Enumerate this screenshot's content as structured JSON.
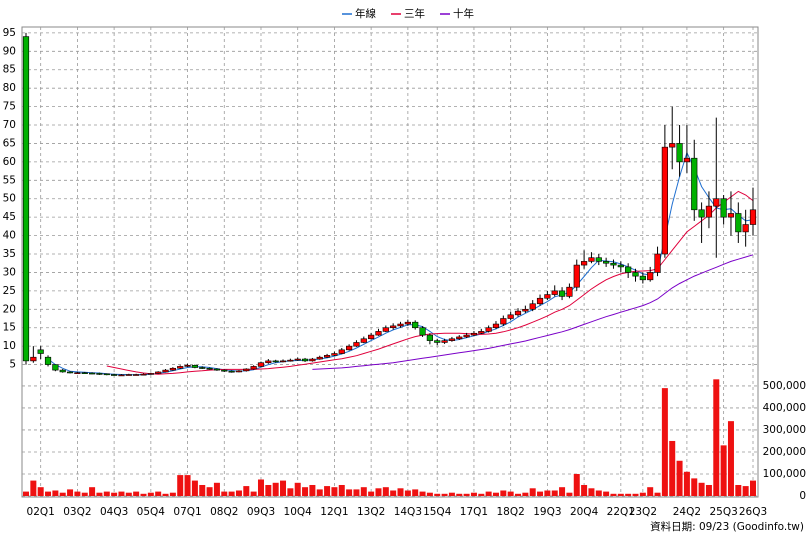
{
  "chart_data": {
    "type": "candlestick",
    "legend": "top",
    "grid": true,
    "up_color": "#ff0000",
    "down_color": "#00b000",
    "categories": [
      null,
      null,
      "02Q1",
      null,
      null,
      null,
      null,
      "03Q2",
      null,
      null,
      null,
      null,
      "04Q3",
      null,
      null,
      null,
      null,
      "05Q4",
      null,
      null,
      null,
      null,
      "07Q1",
      null,
      null,
      null,
      null,
      "08Q2",
      null,
      null,
      null,
      null,
      "09Q3",
      null,
      null,
      null,
      null,
      "10Q4",
      null,
      null,
      null,
      null,
      "12Q1",
      null,
      null,
      null,
      null,
      "13Q2",
      null,
      null,
      null,
      null,
      "14Q3",
      null,
      null,
      null,
      "15Q4",
      null,
      null,
      null,
      null,
      "17Q1",
      null,
      null,
      null,
      null,
      "18Q2",
      null,
      null,
      null,
      null,
      "19Q3",
      null,
      null,
      null,
      null,
      "20Q4",
      null,
      null,
      null,
      null,
      "22Q1",
      null,
      null,
      "23Q2",
      null,
      null,
      null,
      null,
      null,
      "24Q2",
      null,
      null,
      null,
      null,
      "25Q3",
      null,
      null,
      null,
      "26Q3"
    ],
    "open": [
      94,
      6,
      9,
      7,
      5,
      3.5,
      3,
      2.8,
      2.8,
      2.7,
      2.6,
      2.5,
      2.3,
      2.2,
      2.2,
      2.3,
      2.3,
      2.4,
      2.6,
      3.0,
      3.5,
      4.0,
      4.5,
      4.8,
      4.2,
      4.0,
      3.8,
      3.5,
      3.2,
      3.0,
      3.3,
      3.8,
      4.5,
      5.5,
      6.0,
      5.8,
      6.0,
      6.2,
      6.5,
      6.0,
      6.5,
      7.0,
      7.5,
      8.0,
      9.0,
      10.0,
      11.0,
      12.0,
      13.0,
      14.0,
      15.0,
      15.5,
      16.0,
      16.5,
      15.0,
      13.0,
      11.5,
      11.0,
      11.5,
      12.0,
      12.5,
      13.0,
      13.5,
      14.0,
      15.0,
      16.0,
      17.5,
      18.5,
      19.5,
      20.0,
      21.5,
      23.0,
      24.0,
      25.0,
      23.5,
      26.0,
      32.0,
      33.0,
      34.0,
      33.0,
      32.5,
      32.0,
      31.5,
      30.0,
      29.0,
      28.0,
      30.0,
      35.0,
      64.0,
      65.0,
      60.0,
      61.0,
      47.0,
      45.0,
      48.0,
      50.0,
      45.0,
      46.0,
      41.0,
      43.0
    ],
    "high": [
      95,
      10,
      10,
      7.5,
      5,
      3.8,
      3.2,
      3,
      3,
      2.9,
      2.8,
      2.6,
      2.5,
      2.4,
      2.5,
      2.5,
      2.6,
      2.8,
      3.2,
      3.8,
      4.3,
      4.8,
      5.2,
      5.0,
      4.5,
      4.2,
      4.0,
      3.7,
      3.4,
      3.5,
      4.0,
      4.8,
      5.8,
      6.5,
      6.3,
      6.4,
      6.6,
      6.9,
      6.8,
      6.8,
      7.4,
      7.9,
      8.5,
      9.5,
      10.5,
      11.6,
      12.6,
      13.6,
      14.7,
      15.6,
      16.2,
      16.6,
      17.2,
      17.0,
      15.4,
      13.5,
      12.0,
      12.0,
      12.5,
      13.0,
      13.6,
      14.1,
      14.7,
      15.6,
      16.8,
      18.3,
      19.3,
      20.3,
      21.0,
      22.5,
      24.0,
      25.0,
      26.5,
      26.0,
      27.0,
      33.5,
      36.0,
      35.5,
      35.0,
      34.0,
      33.5,
      33.0,
      32.5,
      31.0,
      30.0,
      31.5,
      37.0,
      70.0,
      75.0,
      70.0,
      70.0,
      66.0,
      49.0,
      52.0,
      72.0,
      51.0,
      52.0,
      49.0,
      47.0,
      53.0
    ],
    "low": [
      5,
      5.5,
      6.5,
      4.5,
      3.2,
      2.8,
      2.6,
      2.6,
      2.5,
      2.4,
      2.2,
      2.1,
      2.0,
      2.0,
      2.1,
      2.1,
      2.2,
      2.3,
      2.5,
      2.9,
      3.3,
      3.8,
      4.3,
      4.0,
      3.8,
      3.6,
      3.3,
      3.0,
      2.8,
      2.9,
      3.1,
      3.6,
      4.3,
      5.2,
      5.5,
      5.6,
      5.8,
      6.0,
      5.7,
      5.8,
      6.3,
      6.8,
      7.3,
      7.8,
      8.8,
      9.8,
      10.8,
      11.8,
      12.8,
      13.8,
      14.5,
      15.0,
      15.5,
      14.5,
      12.5,
      10.5,
      10.3,
      10.6,
      11.2,
      11.7,
      12.2,
      12.7,
      13.3,
      13.7,
      14.6,
      15.5,
      17.0,
      18.0,
      19.0,
      19.5,
      21.0,
      22.5,
      23.5,
      22.5,
      23.0,
      25.0,
      31.0,
      32.5,
      32.0,
      31.5,
      31.0,
      30.0,
      28.5,
      27.5,
      27.0,
      27.5,
      29.0,
      34.0,
      58.0,
      56.0,
      57.0,
      44.0,
      38.0,
      42.0,
      34.0,
      43.0,
      40.0,
      38.0,
      37.0,
      40.0
    ],
    "close": [
      6,
      7,
      8,
      5,
      3.5,
      3,
      2.8,
      2.8,
      2.7,
      2.6,
      2.5,
      2.3,
      2.2,
      2.2,
      2.3,
      2.3,
      2.4,
      2.6,
      3.0,
      3.5,
      4.0,
      4.5,
      4.8,
      4.2,
      4.0,
      3.8,
      3.5,
      3.2,
      3.0,
      3.3,
      3.8,
      4.5,
      5.5,
      6.0,
      5.8,
      6.0,
      6.2,
      6.5,
      6.0,
      6.5,
      7.0,
      7.5,
      8.0,
      9.0,
      10.0,
      11.0,
      12.0,
      13.0,
      14.0,
      15.0,
      15.5,
      16.0,
      16.5,
      15.0,
      13.0,
      11.5,
      11.0,
      11.5,
      12.0,
      12.5,
      13.0,
      13.5,
      14.0,
      15.0,
      16.0,
      17.5,
      18.5,
      19.5,
      20.0,
      21.5,
      23.0,
      24.0,
      25.0,
      23.5,
      26.0,
      32.0,
      33.0,
      34.0,
      33.0,
      32.5,
      32.0,
      31.5,
      30.0,
      29.0,
      28.0,
      30.0,
      35.0,
      64.0,
      65.0,
      60.0,
      61.0,
      47.0,
      45.0,
      48.0,
      50.0,
      45.0,
      46.0,
      41.0,
      43.0,
      47.0
    ],
    "ylim": [
      0,
      96.6
    ],
    "yticks": [
      5,
      10,
      15,
      20,
      25,
      30,
      35,
      40,
      45,
      50,
      55,
      60,
      65,
      70,
      75,
      80,
      85,
      90,
      95
    ],
    "ma_series": [
      {
        "name": "年線",
        "color": "#1f6fd0",
        "values": [
          null,
          null,
          null,
          6.5,
          5,
          4,
          3.2,
          3,
          2.9,
          2.8,
          2.7,
          2.5,
          2.4,
          2.3,
          2.25,
          2.25,
          2.3,
          2.4,
          2.6,
          2.9,
          3.3,
          3.8,
          4.2,
          4.4,
          4.4,
          4.2,
          3.9,
          3.6,
          3.4,
          3.2,
          3.3,
          3.6,
          4.3,
          5.0,
          5.5,
          5.8,
          6.0,
          6.1,
          6.2,
          6.3,
          6.5,
          6.8,
          7.3,
          7.9,
          8.6,
          9.5,
          10.5,
          11.5,
          12.5,
          13.5,
          14.4,
          15.1,
          15.8,
          15.8,
          15.3,
          14.0,
          12.6,
          11.8,
          11.5,
          11.8,
          12.3,
          12.8,
          13.3,
          14.0,
          14.7,
          15.6,
          16.6,
          17.9,
          18.9,
          19.9,
          21.0,
          22.1,
          23.4,
          23.9,
          24.6,
          26.6,
          28.9,
          31.3,
          33.3,
          33.1,
          32.9,
          32.3,
          31.5,
          30.6,
          29.6,
          29.3,
          30.5,
          39.3,
          48.5,
          56.0,
          62.5,
          58.3,
          53.3,
          50.3,
          47.5,
          47.0,
          47.3,
          45.5,
          44.0,
          44.3
        ]
      },
      {
        "name": "三年",
        "color": "#e0003c",
        "values": [
          null,
          null,
          null,
          null,
          null,
          null,
          null,
          null,
          null,
          null,
          null,
          4.6,
          4.2,
          3.8,
          3.4,
          3.0,
          2.7,
          2.5,
          2.4,
          2.5,
          2.6,
          2.8,
          3.0,
          3.2,
          3.3,
          3.5,
          3.6,
          3.7,
          3.7,
          3.7,
          3.7,
          3.7,
          3.8,
          3.9,
          4.1,
          4.3,
          4.5,
          4.8,
          5.1,
          5.4,
          5.7,
          6.0,
          6.3,
          6.6,
          7.0,
          7.4,
          8.0,
          8.6,
          9.2,
          9.9,
          10.6,
          11.3,
          12.0,
          12.6,
          13.0,
          13.3,
          13.4,
          13.5,
          13.5,
          13.5,
          13.4,
          13.3,
          13.2,
          13.3,
          13.5,
          13.9,
          14.4,
          15.0,
          15.7,
          16.5,
          17.3,
          18.2,
          19.2,
          20.0,
          21.0,
          22.5,
          24.0,
          25.5,
          26.8,
          28.0,
          28.9,
          29.6,
          30.0,
          30.3,
          30.4,
          30.5,
          31.0,
          33.5,
          36.0,
          38.5,
          41.0,
          42.5,
          44.0,
          45.5,
          47.5,
          49.0,
          50.5,
          52.0,
          51.0,
          49.5
        ]
      },
      {
        "name": "十年",
        "color": "#7a00c8",
        "values": [
          null,
          null,
          null,
          null,
          null,
          null,
          null,
          null,
          null,
          null,
          null,
          null,
          null,
          null,
          null,
          null,
          null,
          null,
          null,
          null,
          null,
          null,
          null,
          null,
          null,
          null,
          null,
          null,
          null,
          null,
          null,
          null,
          null,
          null,
          null,
          null,
          null,
          null,
          null,
          3.7,
          3.8,
          3.9,
          4.0,
          4.1,
          4.3,
          4.5,
          4.7,
          4.9,
          5.1,
          5.3,
          5.5,
          5.8,
          6.1,
          6.4,
          6.7,
          7.0,
          7.3,
          7.6,
          7.9,
          8.2,
          8.5,
          8.8,
          9.1,
          9.4,
          9.8,
          10.2,
          10.6,
          11.0,
          11.4,
          11.9,
          12.4,
          12.9,
          13.4,
          13.9,
          14.5,
          15.2,
          15.9,
          16.6,
          17.3,
          18.0,
          18.6,
          19.2,
          19.8,
          20.4,
          21.0,
          21.8,
          22.8,
          24.3,
          25.8,
          27.0,
          28.0,
          29.0,
          29.8,
          30.6,
          31.4,
          32.2,
          33.0,
          33.6,
          34.2,
          34.8
        ]
      }
    ],
    "volume": {
      "color": "#ee1111",
      "values": [
        20000,
        70000,
        40000,
        20000,
        25000,
        15000,
        30000,
        20000,
        15000,
        40000,
        15000,
        20000,
        15000,
        20000,
        15000,
        20000,
        10000,
        15000,
        20000,
        10000,
        15000,
        95000,
        95000,
        70000,
        50000,
        40000,
        60000,
        20000,
        20000,
        25000,
        45000,
        20000,
        75000,
        50000,
        60000,
        70000,
        35000,
        60000,
        40000,
        50000,
        30000,
        45000,
        40000,
        50000,
        30000,
        30000,
        40000,
        20000,
        35000,
        40000,
        25000,
        35000,
        25000,
        30000,
        20000,
        15000,
        10000,
        10000,
        15000,
        10000,
        10000,
        15000,
        10000,
        20000,
        15000,
        25000,
        20000,
        10000,
        15000,
        35000,
        20000,
        25000,
        25000,
        40000,
        15000,
        100000,
        50000,
        35000,
        25000,
        20000,
        10000,
        10000,
        10000,
        10000,
        15000,
        40000,
        15000,
        490000,
        250000,
        160000,
        110000,
        80000,
        60000,
        50000,
        530000,
        230000,
        340000,
        50000,
        45000,
        70000
      ],
      "ylim": [
        0,
        536000
      ],
      "yticks": [
        0,
        {
          "value": 100000,
          "label": "100,000"
        },
        {
          "value": 200000,
          "label": "200,000"
        },
        {
          "value": 300000,
          "label": "300,000"
        },
        {
          "value": 400000,
          "label": "400,000"
        },
        {
          "value": 500000,
          "label": "500,000"
        }
      ]
    },
    "footer": "資料日期: 09/23 (Goodinfo.tw)"
  }
}
